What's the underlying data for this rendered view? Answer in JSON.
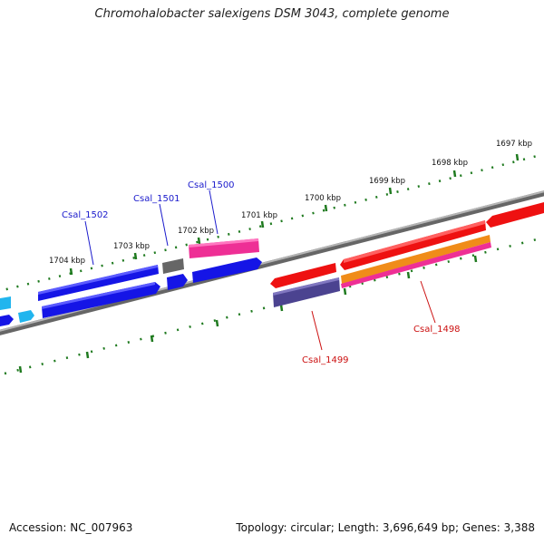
{
  "title": "Chromohalobacter salexigens DSM 3043, complete genome",
  "footer": {
    "accession": "Accession: NC_007963",
    "stats": "Topology: circular; Length: 3,696,649 bp; Genes: 3,388"
  },
  "kbp_labels": [
    "1697 kbp",
    "1698 kbp",
    "1699 kbp",
    "1700 kbp",
    "1701 kbp",
    "1702 kbp",
    "1703 kbp",
    "1704 kbp"
  ],
  "gene_labels": [
    {
      "name": "Csal_1502",
      "strand": "forward"
    },
    {
      "name": "Csal_1501",
      "strand": "forward"
    },
    {
      "name": "Csal_1500",
      "strand": "forward"
    },
    {
      "name": "Csal_1499",
      "strand": "reverse"
    },
    {
      "name": "Csal_1498",
      "strand": "reverse"
    }
  ],
  "colors": {
    "forward_label": "#1a1acc",
    "reverse_label": "#cc1111",
    "tick": "#1f7a1f",
    "backbone": "#888888",
    "blue_gene": "#1515e6",
    "grey_gene": "#666666",
    "pink_gene": "#ee2f95",
    "red_gene": "#ee1111",
    "slate_gene": "#4b4390",
    "orange_gene": "#f08c19",
    "cyan_gene": "#21b5ee"
  }
}
